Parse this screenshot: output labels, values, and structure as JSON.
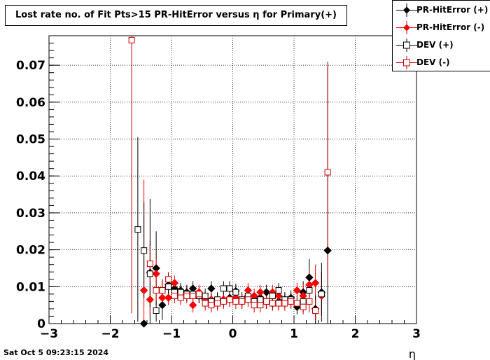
{
  "window": {
    "timestamp": "Sat Oct  5 09:23:15 2024"
  },
  "chart_data": {
    "type": "scatter",
    "title": "Lost rate no. of Fit Pts>15 PR-HitError versus η for Primary(+)",
    "xlabel": "η",
    "ylabel": "",
    "xlim": [
      -3,
      3
    ],
    "ylim": [
      0,
      0.078
    ],
    "xticks": [
      -3,
      -2,
      -1,
      0,
      1,
      2,
      3
    ],
    "xtick_labels": [
      "−3",
      "−2",
      "−1",
      "0",
      "1",
      "2",
      "3"
    ],
    "yticks": [
      0,
      0.01,
      0.02,
      0.03,
      0.04,
      0.05,
      0.06,
      0.07
    ],
    "ytick_labels": [
      "0",
      "0.01",
      "0.02",
      "0.03",
      "0.04",
      "0.05",
      "0.06",
      "0.07"
    ],
    "grid": true,
    "legend_position": "top-right",
    "series": [
      {
        "name": "PR-HitError (+)",
        "marker": "diamond",
        "filled": true,
        "color": "#000000",
        "x": [
          -1.45,
          -1.35,
          -1.25,
          -1.15,
          -1.05,
          -0.95,
          -0.85,
          -0.75,
          -0.65,
          -0.55,
          -0.45,
          -0.35,
          -0.25,
          -0.15,
          -0.05,
          0.05,
          0.15,
          0.25,
          0.35,
          0.45,
          0.55,
          0.65,
          0.75,
          0.85,
          0.95,
          1.05,
          1.15,
          1.25,
          1.35,
          1.45,
          1.55
        ],
        "y": [
          0.0,
          0.0138,
          0.015,
          0.005,
          0.0105,
          0.0095,
          0.009,
          0.0085,
          0.0095,
          0.0075,
          0.0065,
          0.0095,
          0.006,
          0.0065,
          0.007,
          0.0088,
          0.006,
          0.0075,
          0.0065,
          0.007,
          0.0085,
          0.0055,
          0.006,
          0.0065,
          0.007,
          0.0045,
          0.0085,
          0.0125,
          0.004,
          0.0085,
          0.0198
        ],
        "err": [
          0,
          0.02,
          0.01,
          0.004,
          0.003,
          0.002,
          0.002,
          0.002,
          0.002,
          0.002,
          0.002,
          0.002,
          0.002,
          0.002,
          0.002,
          0.002,
          0.002,
          0.002,
          0.002,
          0.002,
          0.002,
          0.002,
          0.002,
          0.002,
          0.002,
          0.002,
          0.003,
          0.005,
          0.004,
          0.008,
          0.05
        ]
      },
      {
        "name": "PR-HitError (-)",
        "marker": "diamond",
        "filled": true,
        "color": "#ff0000",
        "x": [
          -1.45,
          -1.35,
          -1.25,
          -1.15,
          -1.05,
          -0.95,
          -0.85,
          -0.75,
          -0.65,
          -0.55,
          -0.45,
          -0.35,
          -0.25,
          -0.15,
          -0.05,
          0.05,
          0.15,
          0.25,
          0.35,
          0.45,
          0.55,
          0.65,
          0.75,
          0.85,
          0.95,
          1.05,
          1.15,
          1.25,
          1.35,
          1.45
        ],
        "y": [
          0.009,
          0.0065,
          0.0135,
          0.007,
          0.007,
          0.011,
          0.0075,
          0.008,
          0.005,
          0.0085,
          0.0065,
          0.0065,
          0.006,
          0.0065,
          0.0065,
          0.007,
          0.006,
          0.009,
          0.0075,
          0.0085,
          0.006,
          0.0085,
          0.0075,
          0.006,
          0.006,
          0.009,
          0.0075,
          0.0105,
          0.011,
          0.0075
        ],
        "err": [
          0.03,
          0.004,
          0.004,
          0.003,
          0.002,
          0.002,
          0.002,
          0.002,
          0.002,
          0.002,
          0.002,
          0.002,
          0.002,
          0.002,
          0.002,
          0.002,
          0.002,
          0.002,
          0.002,
          0.002,
          0.002,
          0.002,
          0.002,
          0.002,
          0.002,
          0.002,
          0.003,
          0.004,
          0.005,
          0.006
        ]
      },
      {
        "name": "DEV (+)",
        "marker": "square",
        "filled": false,
        "color": "#000000",
        "x": [
          -1.55,
          -1.45,
          -1.35,
          -1.25,
          -1.15,
          -1.05,
          -0.95,
          -0.85,
          -0.75,
          -0.65,
          -0.55,
          -0.45,
          -0.35,
          -0.25,
          -0.15,
          -0.05,
          0.05,
          0.15,
          0.25,
          0.35,
          0.45,
          0.55,
          0.65,
          0.75,
          0.85,
          0.95,
          1.05,
          1.15,
          1.25,
          1.35,
          1.45
        ],
        "y": [
          0.0255,
          0.0198,
          0.0135,
          0.0035,
          0.009,
          0.01,
          0.0085,
          0.0085,
          0.008,
          0.008,
          0.0075,
          0.0075,
          0.006,
          0.0065,
          0.0095,
          0.0095,
          0.0085,
          0.0065,
          0.0075,
          0.006,
          0.0065,
          0.006,
          0.0075,
          0.009,
          0.0065,
          0.0065,
          0.0055,
          0.006,
          0.009,
          0.0035,
          0.008
        ],
        "err": [
          0.025,
          0.013,
          0.009,
          0.003,
          0.003,
          0.002,
          0.002,
          0.002,
          0.002,
          0.002,
          0.002,
          0.002,
          0.002,
          0.002,
          0.002,
          0.002,
          0.002,
          0.002,
          0.002,
          0.002,
          0.002,
          0.002,
          0.002,
          0.002,
          0.002,
          0.002,
          0.002,
          0.003,
          0.004,
          0.004,
          0.006
        ]
      },
      {
        "name": "DEV (-)",
        "marker": "square",
        "filled": false,
        "color": "#cc0000",
        "x": [
          -1.65,
          -1.35,
          -1.25,
          -1.15,
          -1.05,
          -0.95,
          -0.85,
          -0.75,
          -0.65,
          -0.55,
          -0.45,
          -0.35,
          -0.25,
          -0.15,
          -0.05,
          0.05,
          0.15,
          0.25,
          0.35,
          0.45,
          0.55,
          0.65,
          0.75,
          0.85,
          0.95,
          1.05,
          1.15,
          1.25,
          1.35,
          1.55
        ],
        "y": [
          0.0768,
          0.0162,
          0.009,
          0.009,
          0.012,
          0.0075,
          0.007,
          0.0075,
          0.0075,
          0.008,
          0.0055,
          0.005,
          0.0055,
          0.006,
          0.0065,
          0.006,
          0.006,
          0.0065,
          0.005,
          0.005,
          0.006,
          0.0055,
          0.0055,
          0.0055,
          0.006,
          0.0055,
          0.0045,
          0.006,
          0.0035,
          0.041
        ],
        "err": [
          0.074,
          0.005,
          0.003,
          0.003,
          0.002,
          0.002,
          0.002,
          0.002,
          0.002,
          0.002,
          0.002,
          0.002,
          0.002,
          0.002,
          0.002,
          0.002,
          0.002,
          0.002,
          0.002,
          0.002,
          0.002,
          0.002,
          0.002,
          0.002,
          0.002,
          0.002,
          0.002,
          0.003,
          0.003,
          0.03
        ]
      }
    ]
  }
}
